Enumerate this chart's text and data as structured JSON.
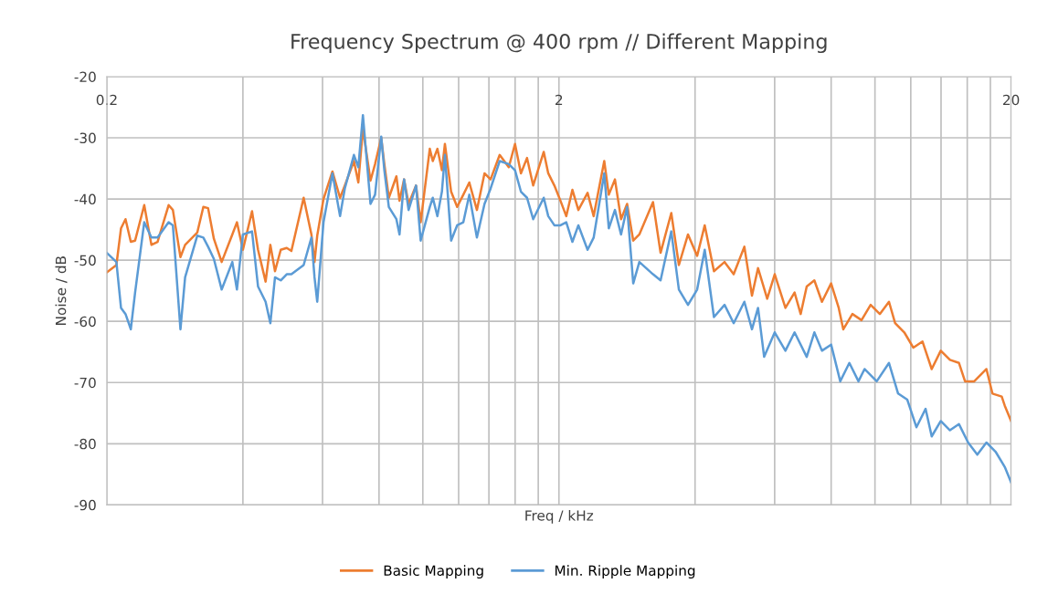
{
  "chart_data": {
    "type": "line",
    "title": "Frequency Spectrum @ 400 rpm // Different Mapping",
    "xlabel": "Freq / kHz",
    "ylabel": "Noise / dB",
    "log": "x",
    "xlim": [
      0.2,
      20
    ],
    "ylim": [
      -90,
      -20
    ],
    "xticks": [
      0.2,
      {
        "value": 0.4,
        "label": null
      },
      {
        "value": 0.6,
        "label": null
      },
      {
        "value": 0.8,
        "label": null
      },
      {
        "value": 1.0,
        "label": null
      },
      {
        "value": 1.2,
        "label": null
      },
      {
        "value": 1.4,
        "label": null
      },
      {
        "value": 1.6,
        "label": null
      },
      {
        "value": 1.8,
        "label": null
      },
      2,
      {
        "value": 4,
        "label": null
      },
      {
        "value": 6,
        "label": null
      },
      {
        "value": 8,
        "label": null
      },
      {
        "value": 10,
        "label": null
      },
      {
        "value": 12,
        "label": null
      },
      {
        "value": 14,
        "label": null
      },
      {
        "value": 16,
        "label": null
      },
      {
        "value": 18,
        "label": null
      },
      20
    ],
    "yticks": [
      -90,
      -80,
      -70,
      -60,
      -50,
      -40,
      -30,
      -20
    ],
    "grid": true,
    "legend": "bottom",
    "line_style": "solid",
    "marker": "none",
    "series": [
      {
        "name": "Basic Mapping",
        "color": "#ed7d31",
        "x": [
          0.2,
          0.21,
          0.215,
          0.22,
          0.226,
          0.231,
          0.242,
          0.251,
          0.259,
          0.274,
          0.28,
          0.291,
          0.298,
          0.317,
          0.327,
          0.335,
          0.345,
          0.359,
          0.379,
          0.388,
          0.4,
          0.419,
          0.432,
          0.449,
          0.46,
          0.471,
          0.485,
          0.5,
          0.512,
          0.545,
          0.567,
          0.576,
          0.584,
          0.603,
          0.631,
          0.656,
          0.672,
          0.704,
          0.72,
          0.737,
          0.766,
          0.784,
          0.809,
          0.822,
          0.841,
          0.874,
          0.888,
          0.909,
          0.93,
          0.966,
          0.989,
          1.036,
          1.052,
          1.077,
          1.102,
          1.119,
          1.155,
          1.191,
          1.229,
          1.267,
          1.317,
          1.369,
          1.412,
          1.479,
          1.549,
          1.599,
          1.648,
          1.7,
          1.754,
          1.851,
          1.894,
          1.954,
          2.016,
          2.076,
          2.142,
          2.208,
          2.314,
          2.387,
          2.519,
          2.578,
          2.66,
          2.744,
          2.83,
          2.92,
          3.012,
          3.229,
          3.356,
          3.544,
          3.684,
          3.859,
          4.043,
          4.202,
          4.404,
          4.649,
          4.87,
          5.142,
          5.345,
          5.513,
          5.776,
          6.002,
          6.338,
          6.64,
          6.849,
          7.064,
          7.344,
          7.634,
          7.998,
          8.314,
          8.51,
          8.914,
          9.338,
          9.782,
          10.25,
          10.74,
          11.08,
          11.61,
          12.16,
          12.74,
          13.35,
          13.98,
          14.65,
          15.34,
          15.82,
          16.58,
          17.64,
          18.19,
          19.07,
          19.37,
          20
        ],
        "values": [
          -52,
          -50.8,
          -44.8,
          -43.3,
          -47,
          -46.8,
          -41,
          -47.5,
          -47,
          -41,
          -41.8,
          -49.5,
          -47.5,
          -45.5,
          -41.3,
          -41.5,
          -46.5,
          -50.3,
          -45.8,
          -43.8,
          -48.3,
          -42,
          -48.3,
          -53.5,
          -47.5,
          -51.8,
          -48.3,
          -48,
          -48.5,
          -39.8,
          -45.8,
          -50.3,
          -46,
          -40,
          -35.5,
          -39.8,
          -37.8,
          -33.8,
          -37.3,
          -28.5,
          -37,
          -34.3,
          -30,
          -34.3,
          -39.8,
          -36.3,
          -40.3,
          -36.8,
          -40.8,
          -37.8,
          -43.8,
          -31.8,
          -33.8,
          -31.8,
          -35.3,
          -31,
          -38.8,
          -41.3,
          -39.3,
          -37.3,
          -41.8,
          -35.8,
          -36.8,
          -32.8,
          -34.8,
          -31,
          -35.8,
          -33.3,
          -37.8,
          -32.3,
          -35.8,
          -37.8,
          -40.3,
          -42.8,
          -38.5,
          -41.8,
          -39,
          -42.8,
          -33.8,
          -39.3,
          -36.8,
          -43.3,
          -40.8,
          -46.8,
          -45.8,
          -40.5,
          -48.8,
          -42.3,
          -50.8,
          -45.8,
          -49.3,
          -44.3,
          -51.8,
          -50.3,
          -52.3,
          -47.8,
          -55.8,
          -51.3,
          -56.3,
          -52.3,
          -57.8,
          -55.3,
          -58.8,
          -54.3,
          -53.3,
          -56.8,
          -53.8,
          -57.8,
          -61.3,
          -58.8,
          -59.8,
          -57.3,
          -58.8,
          -56.8,
          -60.3,
          -61.8,
          -64.3,
          -63.3,
          -67.8,
          -64.8,
          -66.3,
          -66.8,
          -69.8,
          -69.8,
          -67.8,
          -71.8,
          -72.3,
          -73.8,
          -76.3
        ]
      },
      {
        "name": "Min. Ripple Mapping",
        "color": "#5b9bd5",
        "x": [
          0.2,
          0.21,
          0.215,
          0.22,
          0.226,
          0.231,
          0.242,
          0.251,
          0.259,
          0.274,
          0.28,
          0.291,
          0.298,
          0.317,
          0.327,
          0.335,
          0.345,
          0.359,
          0.379,
          0.388,
          0.4,
          0.419,
          0.432,
          0.449,
          0.46,
          0.471,
          0.485,
          0.5,
          0.512,
          0.545,
          0.567,
          0.576,
          0.584,
          0.603,
          0.631,
          0.656,
          0.672,
          0.704,
          0.72,
          0.737,
          0.766,
          0.784,
          0.809,
          0.822,
          0.841,
          0.874,
          0.888,
          0.909,
          0.93,
          0.966,
          0.989,
          1.036,
          1.052,
          1.077,
          1.102,
          1.119,
          1.155,
          1.191,
          1.229,
          1.267,
          1.317,
          1.369,
          1.412,
          1.479,
          1.549,
          1.599,
          1.648,
          1.7,
          1.754,
          1.851,
          1.894,
          1.954,
          2.016,
          2.076,
          2.142,
          2.208,
          2.314,
          2.387,
          2.519,
          2.578,
          2.66,
          2.744,
          2.83,
          2.92,
          3.012,
          3.229,
          3.356,
          3.544,
          3.684,
          3.859,
          4.043,
          4.202,
          4.404,
          4.649,
          4.87,
          5.142,
          5.345,
          5.513,
          5.687,
          6.002,
          6.338,
          6.64,
          7.064,
          7.344,
          7.634,
          7.998,
          8.379,
          8.777,
          9.194,
          9.482,
          10.09,
          10.74,
          11.25,
          11.79,
          12.35,
          12.94,
          13.35,
          13.98,
          14.65,
          15.34,
          16.07,
          16.84,
          17.64,
          18.48,
          19.37,
          20
        ],
        "values": [
          -48.8,
          -50.3,
          -57.8,
          -58.8,
          -61.3,
          -55.3,
          -43.8,
          -46.3,
          -46.3,
          -43.8,
          -44.3,
          -61.3,
          -52.8,
          -46,
          -46.3,
          -47.8,
          -49.8,
          -54.8,
          -50.3,
          -54.8,
          -45.8,
          -45.3,
          -54.3,
          -56.8,
          -60.3,
          -52.8,
          -53.3,
          -52.3,
          -52.3,
          -50.8,
          -46.3,
          -52.8,
          -56.8,
          -43.8,
          -35.8,
          -42.8,
          -38.3,
          -32.8,
          -34.8,
          -26.3,
          -40.8,
          -39.3,
          -29.8,
          -35.3,
          -41.3,
          -43.3,
          -45.8,
          -36.8,
          -41.8,
          -37.8,
          -46.8,
          -41.3,
          -39.8,
          -42.8,
          -38.8,
          -32.8,
          -46.8,
          -44.3,
          -43.8,
          -39.3,
          -46.3,
          -40.8,
          -38.3,
          -33.8,
          -34.3,
          -35.3,
          -38.8,
          -39.8,
          -43.3,
          -39.8,
          -42.8,
          -44.3,
          -44.3,
          -43.8,
          -47,
          -44.3,
          -48.3,
          -46.3,
          -35.8,
          -44.8,
          -41.8,
          -45.8,
          -41.3,
          -53.8,
          -50.3,
          -52.3,
          -53.3,
          -45.3,
          -54.8,
          -57.3,
          -54.8,
          -48.3,
          -59.3,
          -57.3,
          -60.3,
          -56.8,
          -61.3,
          -57.8,
          -65.8,
          -61.8,
          -64.8,
          -61.8,
          -65.8,
          -61.8,
          -64.8,
          -63.8,
          -69.8,
          -66.8,
          -69.8,
          -67.8,
          -69.8,
          -66.8,
          -71.8,
          -72.8,
          -77.3,
          -74.3,
          -78.8,
          -76.3,
          -77.8,
          -76.8,
          -79.8,
          -81.8,
          -79.8,
          -81.3,
          -83.8,
          -86.3
        ]
      }
    ]
  }
}
